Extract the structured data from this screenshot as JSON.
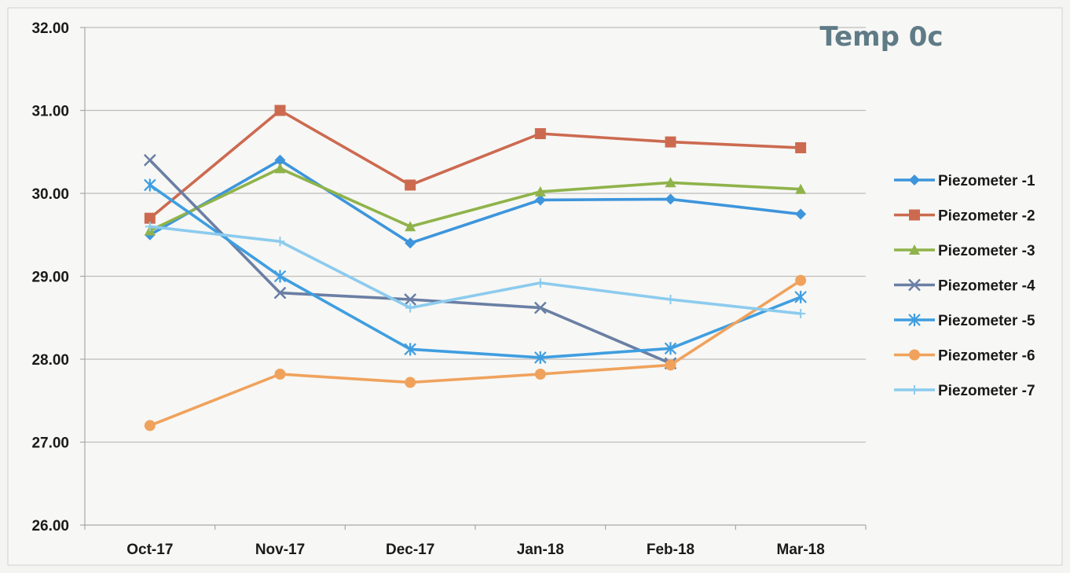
{
  "chart_data": {
    "type": "line",
    "title": "Temp 0c",
    "xlabel": "",
    "ylabel": "",
    "categories": [
      "Oct-17",
      "Nov-17",
      "Dec-17",
      "Jan-18",
      "Feb-18",
      "Mar-18"
    ],
    "y_ticks": [
      "26.00",
      "27.00",
      "28.00",
      "29.00",
      "30.00",
      "31.00",
      "32.00"
    ],
    "ylim": [
      26,
      32
    ],
    "grid": "horizontal",
    "legend_position": "right",
    "series": [
      {
        "name": "Piezometer -1",
        "values": [
          29.5,
          30.4,
          29.4,
          29.92,
          29.93,
          29.75
        ],
        "color": "#3d95dc",
        "marker": "diamond"
      },
      {
        "name": "Piezometer -2",
        "values": [
          29.7,
          31.0,
          30.1,
          30.72,
          30.62,
          30.55
        ],
        "color": "#cc6a50",
        "marker": "square"
      },
      {
        "name": "Piezometer -3",
        "values": [
          29.55,
          30.3,
          29.6,
          30.02,
          30.13,
          30.05
        ],
        "color": "#8fb34a",
        "marker": "triangle"
      },
      {
        "name": "Piezometer -4",
        "values": [
          30.4,
          28.8,
          28.72,
          28.62,
          27.95,
          null
        ],
        "color": "#6a7fa4",
        "marker": "x"
      },
      {
        "name": "Piezometer -5",
        "values": [
          30.1,
          29.0,
          28.12,
          28.02,
          28.13,
          28.75
        ],
        "color": "#3f9ee0",
        "marker": "star"
      },
      {
        "name": "Piezometer -6",
        "values": [
          27.2,
          27.82,
          27.72,
          27.82,
          27.93,
          28.95
        ],
        "color": "#f0a25c",
        "marker": "circle"
      },
      {
        "name": "Piezometer -7",
        "values": [
          29.6,
          29.42,
          28.62,
          28.92,
          28.72,
          28.55
        ],
        "color": "#8ccbee",
        "marker": "plus"
      }
    ]
  }
}
